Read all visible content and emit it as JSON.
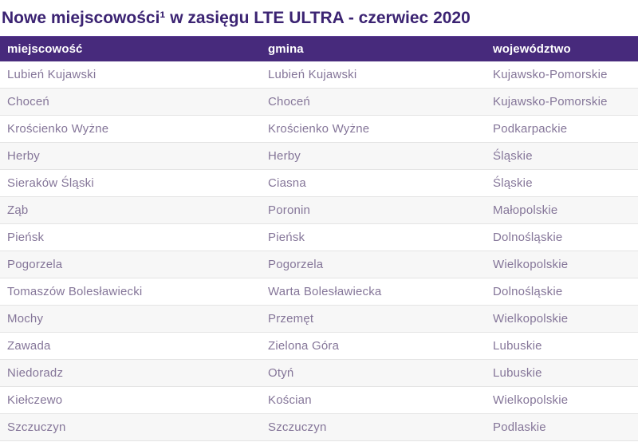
{
  "title": "Nowe miejscowości¹ w zasięgu LTE ULTRA - czerwiec 2020",
  "table": {
    "columns": [
      "miejscowość",
      "gmina",
      "województwo"
    ],
    "rows": [
      [
        "Lubień Kujawski",
        "Lubień Kujawski",
        "Kujawsko-Pomorskie"
      ],
      [
        "Choceń",
        "Choceń",
        "Kujawsko-Pomorskie"
      ],
      [
        "Krościenko Wyżne",
        "Krościenko Wyżne",
        "Podkarpackie"
      ],
      [
        "Herby",
        "Herby",
        "Śląskie"
      ],
      [
        "Sieraków Śląski",
        "Ciasna",
        "Śląskie"
      ],
      [
        "Ząb",
        "Poronin",
        "Małopolskie"
      ],
      [
        "Pieńsk",
        "Pieńsk",
        "Dolnośląskie"
      ],
      [
        "Pogorzela",
        "Pogorzela",
        "Wielkopolskie"
      ],
      [
        "Tomaszów Bolesławiecki",
        "Warta Bolesławiecka",
        "Dolnośląskie"
      ],
      [
        "Mochy",
        "Przemęt",
        "Wielkopolskie"
      ],
      [
        "Zawada",
        "Zielona Góra",
        "Lubuskie"
      ],
      [
        "Niedoradz",
        "Otyń",
        "Lubuskie"
      ],
      [
        "Kiełczewo",
        "Kościan",
        "Wielkopolskie"
      ],
      [
        "Szczuczyn",
        "Szczuczyn",
        "Podlaskie"
      ]
    ]
  },
  "colors": {
    "header_bg": "#472a7c",
    "header_bg_edge": "#5d3f96",
    "header_text": "#ffffff",
    "title_text": "#3b2372",
    "body_text": "#857699",
    "alt_row_bg": "#f7f7f7",
    "row_border": "#e4e4e4",
    "page_bg": "#ffffff"
  }
}
